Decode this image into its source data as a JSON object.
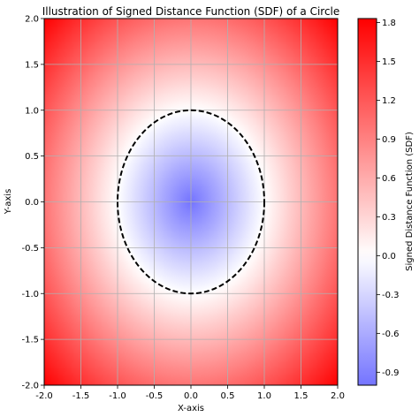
{
  "chart_data": {
    "type": "heatmap",
    "title": "Illustration of Signed Distance Function (SDF) of a Circle",
    "xlabel": "X-axis",
    "ylabel": "Y-axis",
    "xlim": [
      -2.0,
      2.0
    ],
    "ylim": [
      -2.0,
      2.0
    ],
    "x_ticks": [
      "-2.0",
      "-1.5",
      "-1.0",
      "-0.5",
      "0.0",
      "0.5",
      "1.0",
      "1.5",
      "2.0"
    ],
    "y_ticks": [
      "-2.0",
      "-1.5",
      "-1.0",
      "-0.5",
      "0.0",
      "0.5",
      "1.0",
      "1.5",
      "2.0"
    ],
    "grid": true,
    "function": "sqrt(x^2 + y^2) - 1",
    "colormap": "bwr",
    "colorbar": {
      "label": "Signed Distance Function (SDF)",
      "range": [
        -1.0,
        1.83
      ],
      "ticks": [
        "-0.9",
        "-0.6",
        "-0.3",
        "0.0",
        "0.3",
        "0.6",
        "0.9",
        "1.2",
        "1.5",
        "1.8"
      ]
    },
    "overlay": {
      "type": "circle",
      "center": [
        0.0,
        0.0
      ],
      "radius": 1.0,
      "style": "dashed",
      "color": "#000000"
    }
  }
}
